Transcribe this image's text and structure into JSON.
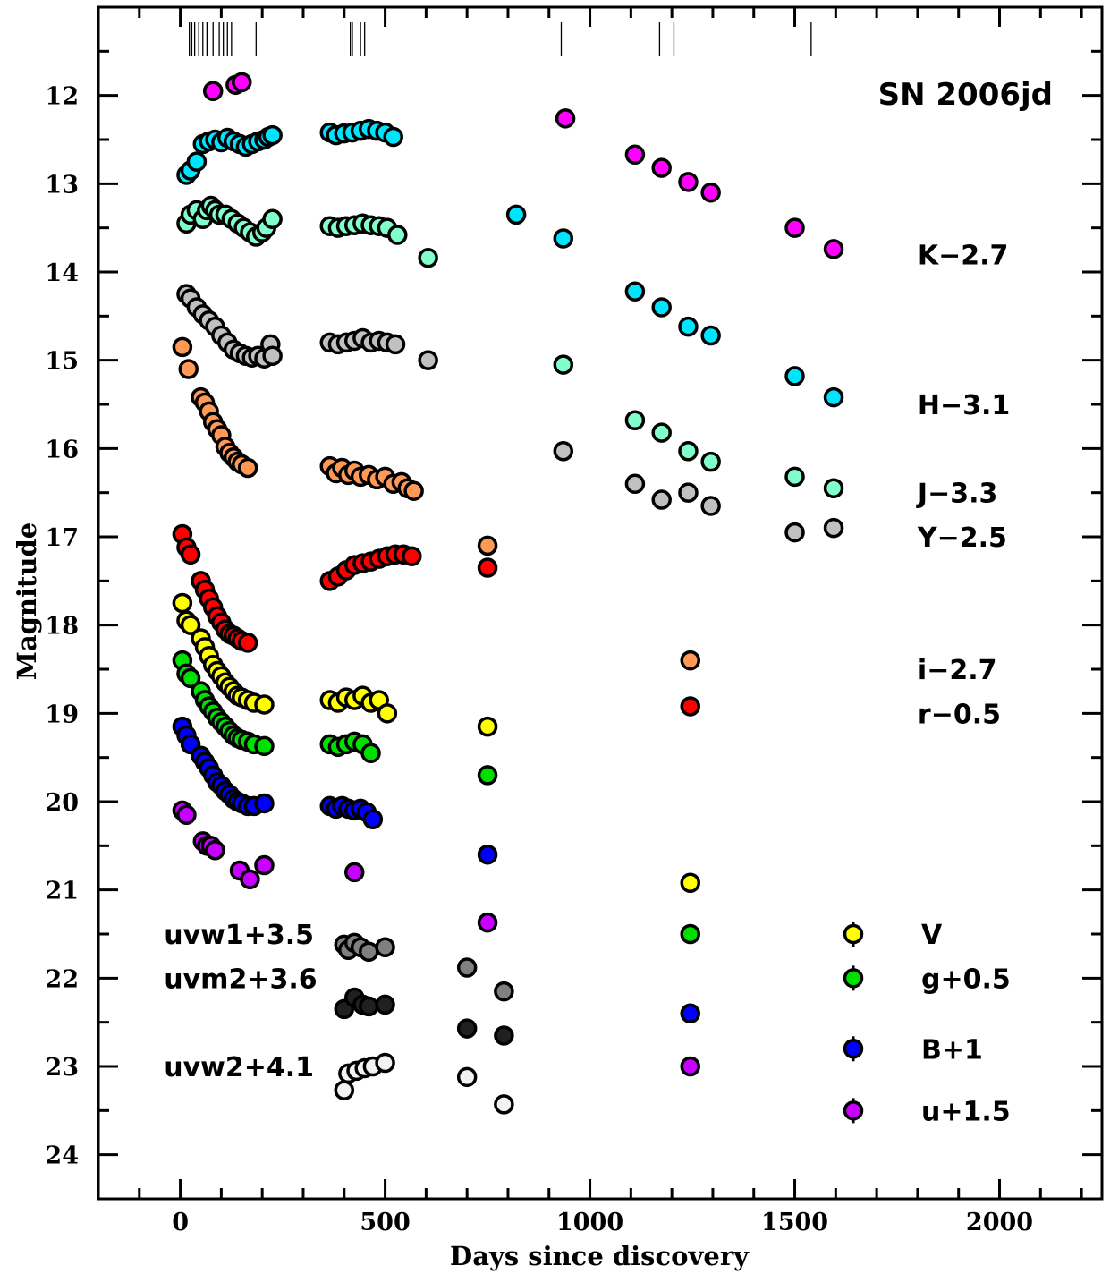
{
  "chart_data": {
    "type": "scatter",
    "title": "SN 2006jd",
    "xlabel": "Days since discovery",
    "ylabel": "Magnitude",
    "xlim": [
      -200,
      2250
    ],
    "ylim": [
      24.5,
      11.0
    ],
    "y_inverted": true,
    "x_ticks": [
      0,
      500,
      1000,
      1500,
      2000
    ],
    "y_ticks": [
      12,
      13,
      14,
      15,
      16,
      17,
      18,
      19,
      20,
      21,
      22,
      23,
      24
    ],
    "spectra_epochs": [
      22,
      28,
      35,
      45,
      55,
      65,
      80,
      95,
      105,
      115,
      125,
      185,
      415,
      420,
      440,
      450,
      930,
      1170,
      1205,
      1540
    ],
    "labels": [
      {
        "text": "K−2.7",
        "x": 1800,
        "y": 13.8
      },
      {
        "text": "H−3.1",
        "x": 1800,
        "y": 15.5
      },
      {
        "text": "J−3.3",
        "x": 1800,
        "y": 16.5
      },
      {
        "text": "Y−2.5",
        "x": 1800,
        "y": 17.0
      },
      {
        "text": "i−2.7",
        "x": 1800,
        "y": 18.5
      },
      {
        "text": "r−0.5",
        "x": 1800,
        "y": 19.0
      },
      {
        "text": "uvw1+3.5",
        "x": -40,
        "y": 21.5
      },
      {
        "text": "uvm2+3.6",
        "x": -40,
        "y": 22.0
      },
      {
        "text": "uvw2+4.1",
        "x": -40,
        "y": 23.0
      }
    ],
    "legend": {
      "placement": "bottom-right",
      "entries": [
        {
          "name": "V",
          "color": "#ffff00"
        },
        {
          "name": "g+0.5",
          "color": "#00e000"
        },
        {
          "name": "B+1",
          "color": "#0000ff"
        },
        {
          "name": "u+1.5",
          "color": "#c800ff"
        }
      ]
    },
    "series": [
      {
        "name": "K−2.7",
        "color": "#ff00ff",
        "x": [
          80,
          135,
          150,
          940,
          1110,
          1175,
          1240,
          1295,
          1500,
          1595
        ],
        "y": [
          11.95,
          11.88,
          11.85,
          12.26,
          12.67,
          12.82,
          12.98,
          13.1,
          13.5,
          13.74
        ]
      },
      {
        "name": "H−3.1",
        "color": "#00e5ff",
        "x": [
          15,
          25,
          40,
          55,
          70,
          85,
          100,
          115,
          130,
          145,
          160,
          175,
          190,
          205,
          215,
          225,
          365,
          380,
          400,
          420,
          440,
          460,
          480,
          500,
          520,
          820,
          935,
          1110,
          1175,
          1240,
          1295,
          1500,
          1595
        ],
        "y": [
          12.9,
          12.85,
          12.75,
          12.55,
          12.52,
          12.5,
          12.53,
          12.48,
          12.52,
          12.55,
          12.58,
          12.55,
          12.52,
          12.5,
          12.47,
          12.45,
          12.42,
          12.45,
          12.43,
          12.42,
          12.4,
          12.38,
          12.4,
          12.42,
          12.47,
          13.35,
          13.62,
          14.22,
          14.4,
          14.62,
          14.72,
          15.18,
          15.42
        ]
      },
      {
        "name": "J−3.3",
        "color": "#80ffcc",
        "x": [
          15,
          25,
          40,
          55,
          65,
          75,
          85,
          95,
          110,
          125,
          140,
          155,
          170,
          185,
          200,
          210,
          225,
          365,
          385,
          405,
          425,
          445,
          465,
          485,
          505,
          530,
          605,
          935,
          1110,
          1175,
          1240,
          1295,
          1500,
          1595
        ],
        "y": [
          13.45,
          13.35,
          13.3,
          13.4,
          13.3,
          13.25,
          13.3,
          13.35,
          13.35,
          13.4,
          13.45,
          13.5,
          13.55,
          13.6,
          13.55,
          13.5,
          13.4,
          13.48,
          13.5,
          13.48,
          13.47,
          13.45,
          13.47,
          13.48,
          13.5,
          13.58,
          13.84,
          15.05,
          15.68,
          15.82,
          16.03,
          16.15,
          16.32,
          16.45
        ]
      },
      {
        "name": "Y−2.5",
        "color": "#c0c0c0",
        "x": [
          15,
          25,
          40,
          55,
          70,
          85,
          100,
          115,
          130,
          145,
          160,
          175,
          190,
          205,
          220,
          225,
          365,
          385,
          405,
          425,
          445,
          465,
          485,
          505,
          525,
          605,
          935,
          1110,
          1175,
          1240,
          1295,
          1500,
          1595
        ],
        "y": [
          14.25,
          14.3,
          14.4,
          14.48,
          14.55,
          14.62,
          14.72,
          14.8,
          14.88,
          14.92,
          14.95,
          14.97,
          14.95,
          14.98,
          14.82,
          14.95,
          14.8,
          14.82,
          14.8,
          14.78,
          14.75,
          14.8,
          14.78,
          14.8,
          14.82,
          15.0,
          16.03,
          16.4,
          16.58,
          16.5,
          16.65,
          16.95,
          16.9
        ]
      },
      {
        "name": "i−2.7",
        "color": "#ff9955",
        "x": [
          5,
          20,
          50,
          60,
          70,
          80,
          90,
          100,
          110,
          120,
          130,
          140,
          150,
          165,
          365,
          380,
          395,
          410,
          425,
          440,
          460,
          480,
          500,
          520,
          540,
          555,
          570,
          750,
          1245
        ],
        "y": [
          14.85,
          15.1,
          15.42,
          15.48,
          15.58,
          15.7,
          15.78,
          15.85,
          15.98,
          16.05,
          16.1,
          16.15,
          16.18,
          16.22,
          16.2,
          16.28,
          16.22,
          16.3,
          16.25,
          16.32,
          16.3,
          16.35,
          16.32,
          16.4,
          16.38,
          16.45,
          16.48,
          17.1,
          18.4
        ]
      },
      {
        "name": "r−0.5",
        "color": "#ff0000",
        "x": [
          5,
          15,
          25,
          50,
          60,
          70,
          80,
          90,
          100,
          110,
          120,
          130,
          140,
          150,
          165,
          365,
          385,
          405,
          425,
          445,
          465,
          485,
          505,
          525,
          545,
          565,
          750,
          1245
        ],
        "y": [
          16.97,
          17.12,
          17.2,
          17.5,
          17.6,
          17.7,
          17.8,
          17.9,
          17.97,
          18.05,
          18.1,
          18.12,
          18.15,
          18.18,
          18.2,
          17.5,
          17.45,
          17.38,
          17.32,
          17.3,
          17.28,
          17.25,
          17.22,
          17.2,
          17.2,
          17.22,
          17.35,
          18.92
        ]
      },
      {
        "name": "V",
        "color": "#ffff00",
        "x": [
          5,
          15,
          25,
          50,
          60,
          70,
          80,
          90,
          100,
          110,
          120,
          130,
          140,
          150,
          165,
          180,
          205,
          365,
          385,
          405,
          425,
          445,
          465,
          485,
          505,
          750,
          1245
        ],
        "y": [
          17.75,
          17.95,
          18.0,
          18.15,
          18.25,
          18.35,
          18.45,
          18.52,
          18.58,
          18.65,
          18.7,
          18.75,
          18.8,
          18.82,
          18.85,
          18.88,
          18.9,
          18.85,
          18.88,
          18.82,
          18.85,
          18.8,
          18.88,
          18.85,
          19.0,
          19.15,
          20.92
        ]
      },
      {
        "name": "g+0.5",
        "color": "#00e000",
        "x": [
          5,
          15,
          25,
          50,
          60,
          70,
          80,
          90,
          100,
          110,
          120,
          130,
          140,
          150,
          165,
          180,
          205,
          365,
          385,
          405,
          425,
          445,
          465,
          750,
          1245
        ],
        "y": [
          18.4,
          18.55,
          18.6,
          18.75,
          18.85,
          18.92,
          18.98,
          19.05,
          19.1,
          19.15,
          19.2,
          19.25,
          19.28,
          19.3,
          19.32,
          19.35,
          19.37,
          19.35,
          19.38,
          19.35,
          19.32,
          19.35,
          19.45,
          19.7,
          21.5
        ]
      },
      {
        "name": "B+1",
        "color": "#0000ff",
        "x": [
          5,
          15,
          25,
          50,
          60,
          70,
          80,
          90,
          100,
          110,
          120,
          130,
          140,
          150,
          165,
          180,
          205,
          365,
          380,
          395,
          410,
          425,
          440,
          455,
          470,
          750,
          1245
        ],
        "y": [
          19.15,
          19.25,
          19.35,
          19.48,
          19.55,
          19.62,
          19.7,
          19.78,
          19.82,
          19.88,
          19.92,
          19.97,
          20.0,
          20.02,
          20.05,
          20.05,
          20.02,
          20.05,
          20.08,
          20.05,
          20.08,
          20.1,
          20.08,
          20.12,
          20.2,
          20.6,
          22.4
        ]
      },
      {
        "name": "u+1.5",
        "color": "#c800ff",
        "x": [
          5,
          15,
          55,
          65,
          75,
          85,
          145,
          170,
          205,
          425,
          750,
          1245
        ],
        "y": [
          20.1,
          20.15,
          20.45,
          20.5,
          20.5,
          20.55,
          20.78,
          20.88,
          20.72,
          20.8,
          21.37,
          23.0
        ]
      },
      {
        "name": "uvw1+3.5",
        "color": "#808080",
        "x": [
          400,
          410,
          425,
          440,
          460,
          500,
          700,
          790
        ],
        "y": [
          21.62,
          21.68,
          21.6,
          21.65,
          21.7,
          21.65,
          21.88,
          22.15
        ]
      },
      {
        "name": "uvm2+3.6",
        "color": "#202020",
        "x": [
          400,
          425,
          445,
          460,
          500,
          700,
          790
        ],
        "y": [
          22.35,
          22.22,
          22.3,
          22.32,
          22.3,
          22.57,
          22.65
        ]
      },
      {
        "name": "uvw2+4.1",
        "color": "#f2f2f2",
        "x": [
          400,
          410,
          430,
          450,
          470,
          500,
          700,
          790
        ],
        "y": [
          23.27,
          23.08,
          23.05,
          23.02,
          23.0,
          22.96,
          23.12,
          23.43
        ]
      }
    ]
  }
}
